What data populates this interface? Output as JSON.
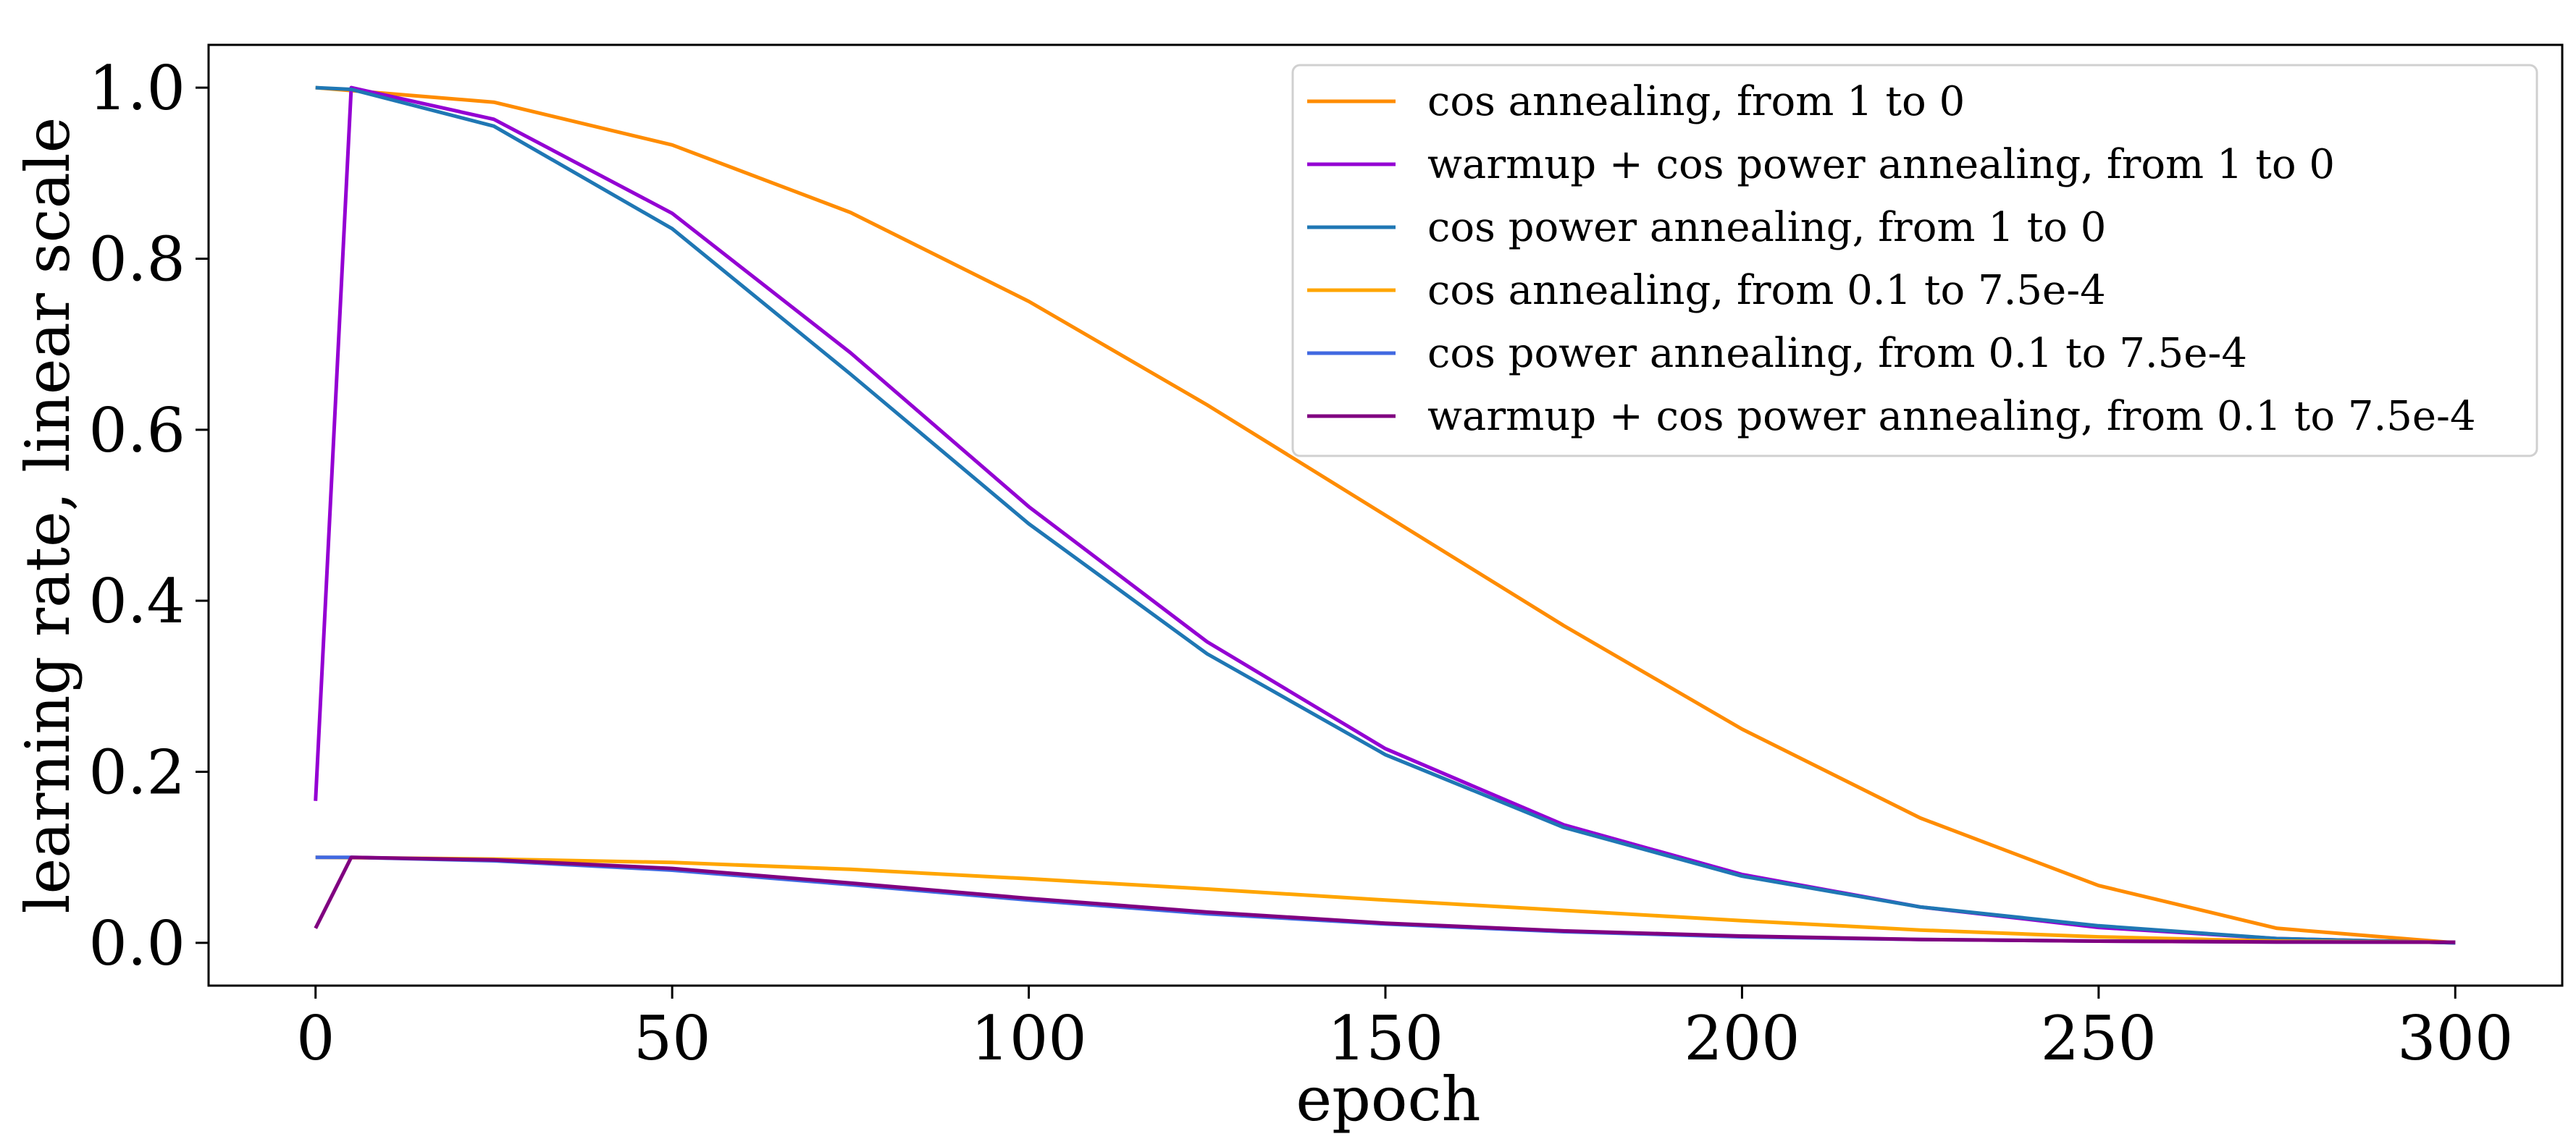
{
  "chart_data": {
    "type": "line",
    "title": "",
    "xlabel": "epoch",
    "ylabel": "learning rate, linear scale",
    "xlim": [
      -15,
      315
    ],
    "ylim": [
      -0.05,
      1.05
    ],
    "xticks": [
      0,
      50,
      100,
      150,
      200,
      250,
      300
    ],
    "xtick_labels": [
      "0",
      "50",
      "100",
      "150",
      "200",
      "250",
      "300"
    ],
    "yticks": [
      0.0,
      0.2,
      0.4,
      0.6,
      0.8,
      1.0
    ],
    "ytick_labels": [
      "0.0",
      "0.2",
      "0.4",
      "0.6",
      "0.8",
      "1.0"
    ],
    "grid": false,
    "legend_position": "top-right",
    "series": [
      {
        "name": "cos annealing, from 1 to 0",
        "color": "#ff8c00",
        "x": [
          0,
          25,
          50,
          75,
          100,
          125,
          150,
          175,
          200,
          225,
          250,
          275,
          300
        ],
        "y": [
          1.0,
          0.983,
          0.933,
          0.854,
          0.75,
          0.629,
          0.5,
          0.371,
          0.25,
          0.146,
          0.067,
          0.017,
          0.0
        ]
      },
      {
        "name": "warmup + cos power annealing, from 1 to 0",
        "color": "#9400d3",
        "x": [
          0,
          5,
          25,
          50,
          75,
          100,
          125,
          150,
          175,
          200,
          225,
          250,
          275,
          300
        ],
        "y": [
          0.166,
          1.0,
          0.963,
          0.853,
          0.69,
          0.51,
          0.352,
          0.227,
          0.138,
          0.08,
          0.042,
          0.018,
          0.005,
          0.0
        ]
      },
      {
        "name": "cos power annealing, from 1 to 0",
        "color": "#1f77b4",
        "x": [
          0,
          5,
          25,
          50,
          75,
          100,
          125,
          150,
          175,
          200,
          225,
          250,
          275,
          300
        ],
        "y": [
          1.0,
          0.998,
          0.955,
          0.835,
          0.665,
          0.49,
          0.338,
          0.22,
          0.135,
          0.078,
          0.042,
          0.02,
          0.005,
          0.0
        ]
      },
      {
        "name": "cos annealing, from 0.1 to 7.5e-4",
        "color": "#ffa500",
        "x": [
          0,
          25,
          50,
          75,
          100,
          125,
          150,
          175,
          200,
          225,
          250,
          275,
          300
        ],
        "y": [
          0.1,
          0.098,
          0.094,
          0.086,
          0.075,
          0.063,
          0.05,
          0.038,
          0.026,
          0.015,
          0.007,
          0.002,
          0.00075
        ]
      },
      {
        "name": "cos power annealing, from 0.1 to 7.5e-4",
        "color": "#4169e1",
        "x": [
          0,
          5,
          25,
          50,
          75,
          100,
          125,
          150,
          175,
          200,
          225,
          250,
          275,
          300
        ],
        "y": [
          0.1,
          0.1,
          0.096,
          0.085,
          0.068,
          0.05,
          0.034,
          0.022,
          0.013,
          0.007,
          0.004,
          0.002,
          0.001,
          0.00075
        ]
      },
      {
        "name": "warmup + cos power annealing, from 0.1 to 7.5e-4",
        "color": "#800080",
        "x": [
          0,
          5,
          25,
          50,
          75,
          100,
          125,
          150,
          175,
          200,
          225,
          250,
          275,
          300
        ],
        "y": [
          0.017,
          0.1,
          0.097,
          0.087,
          0.07,
          0.052,
          0.036,
          0.023,
          0.014,
          0.008,
          0.004,
          0.002,
          0.001,
          0.00075
        ]
      }
    ]
  }
}
